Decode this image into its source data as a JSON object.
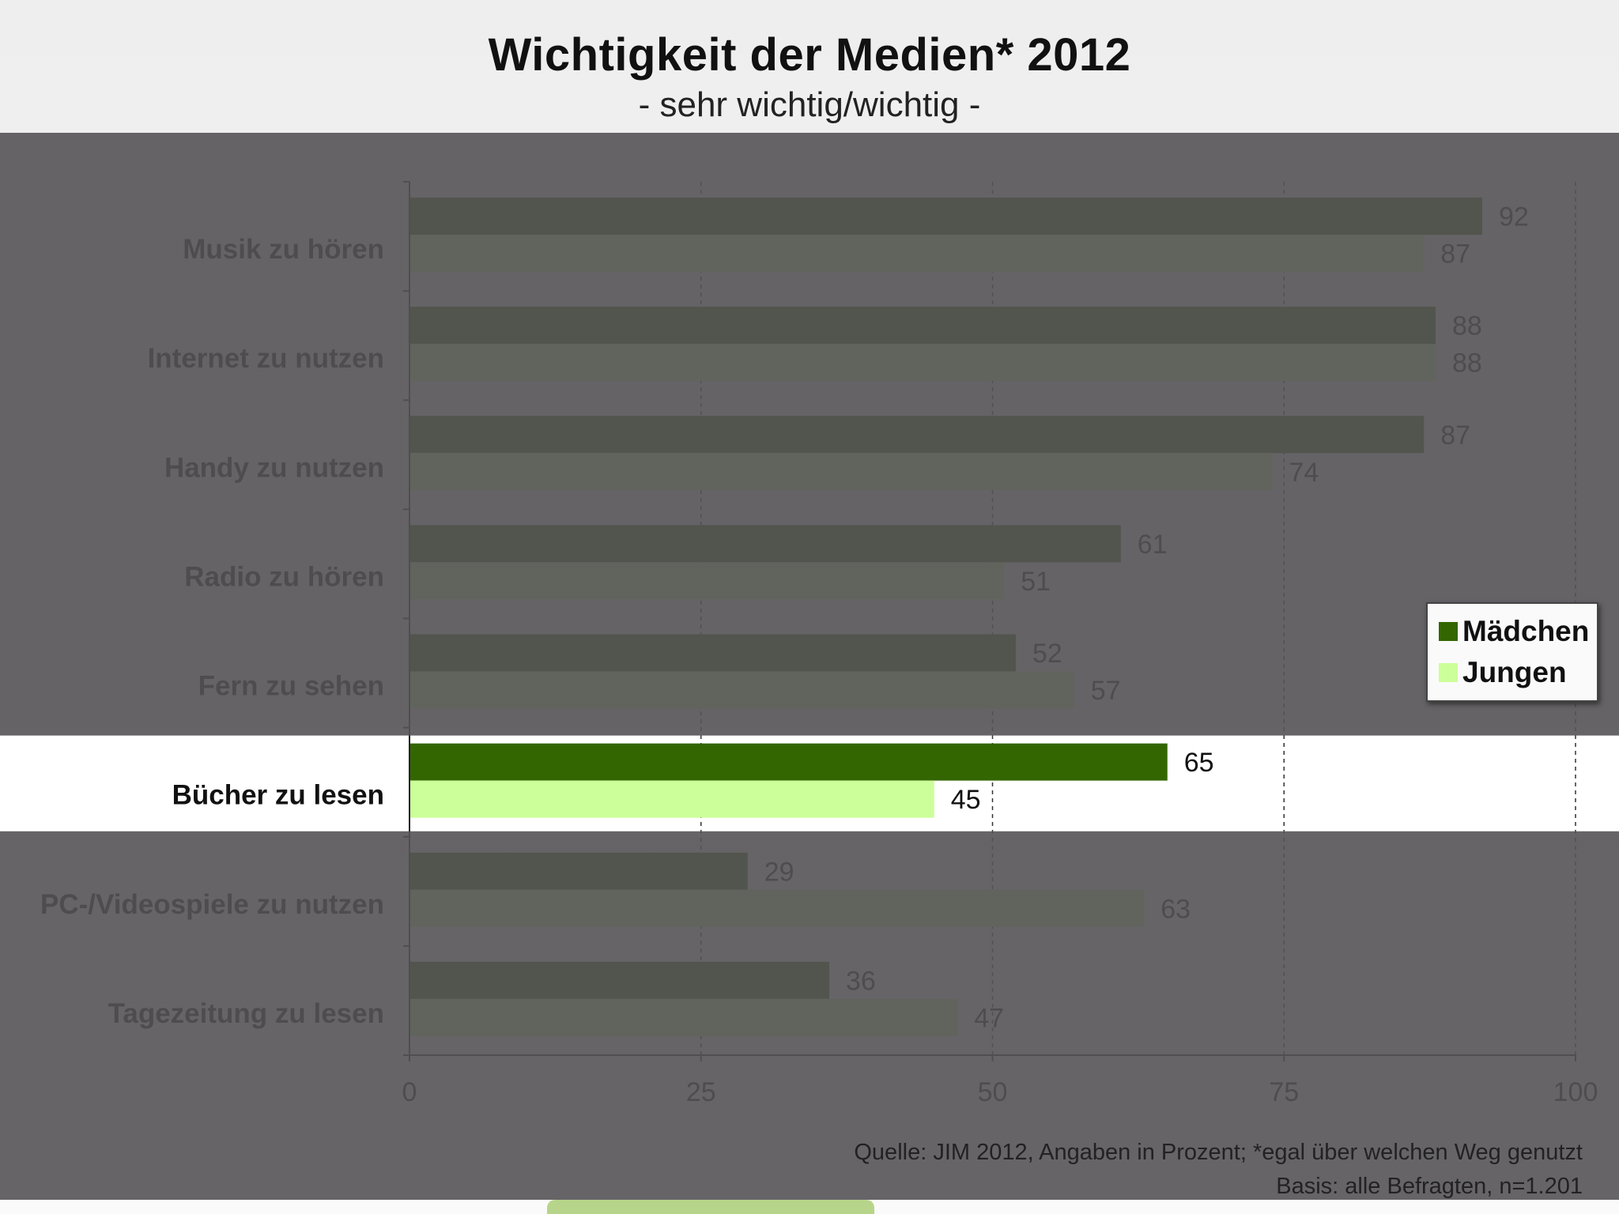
{
  "slide": {
    "title": "Wichtigkeit der Medien* 2012",
    "subtitle": "- sehr wichtig/wichtig -",
    "source_line1": "Quelle: JIM 2012, Angaben in Prozent; *egal über welchen Weg genutzt",
    "source_line2": "Basis: alle Befragten, n=1.201"
  },
  "colors": {
    "maedchen": "#336600",
    "jungen": "#ccff99",
    "highlight_bg": "#ffffff",
    "dim_overlay": "#555357"
  },
  "chart_data": {
    "type": "bar",
    "orientation": "horizontal",
    "title": "Wichtigkeit der Medien* 2012",
    "subtitle": "- sehr wichtig/wichtig -",
    "categories": [
      "Musik zu hören",
      "Internet zu nutzen",
      "Handy zu nutzen",
      "Radio zu hören",
      "Fern zu sehen",
      "Bücher zu lesen",
      "PC-/Videospiele zu nutzen",
      "Tagezeitung zu lesen"
    ],
    "highlighted_category": "Bücher zu lesen",
    "series": [
      {
        "name": "Mädchen",
        "values": [
          92,
          88,
          87,
          61,
          52,
          65,
          29,
          36
        ]
      },
      {
        "name": "Jungen",
        "values": [
          87,
          88,
          74,
          51,
          57,
          45,
          63,
          47
        ]
      }
    ],
    "xlim": [
      0,
      100
    ],
    "xticks": [
      0,
      25,
      50,
      75,
      100
    ],
    "grid": "vertical dashed",
    "legend": "right",
    "xlabel": "",
    "ylabel": ""
  }
}
